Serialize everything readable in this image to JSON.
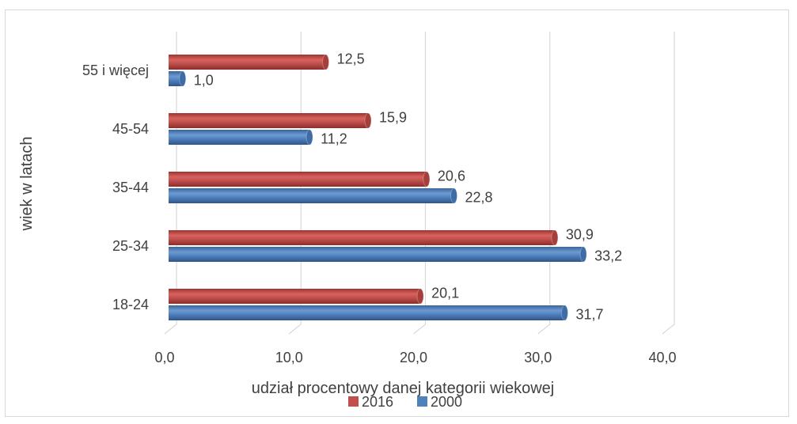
{
  "chart_data": {
    "type": "bar",
    "orientation": "horizontal",
    "style": "3d-cylinder",
    "categories": [
      "18-24",
      "25-34",
      "35-44",
      "45-54",
      "55 i więcej"
    ],
    "series": [
      {
        "name": "2016",
        "values": [
          20.1,
          30.9,
          20.6,
          15.9,
          12.5
        ]
      },
      {
        "name": "2000",
        "values": [
          31.7,
          33.2,
          22.8,
          11.2,
          1.0
        ]
      }
    ],
    "data_labels": {
      "2016": [
        "20,1",
        "30,9",
        "20,6",
        "15,9",
        "12,5"
      ],
      "2000": [
        "31,7",
        "33,2",
        "22,8",
        "11,2",
        "1,0"
      ]
    },
    "xlabel": "udział procentowy danej kategorii wiekowej",
    "ylabel": "wiek w latach",
    "xlim": [
      0,
      40
    ],
    "x_ticks": [
      0,
      10,
      20,
      30,
      40
    ],
    "x_tick_labels": [
      "0,0",
      "10,0",
      "20,0",
      "30,0",
      "40,0"
    ],
    "grid": "vertical",
    "legend": "bottom",
    "colors": {
      "2016": "#c0504d",
      "2000": "#4f81bd",
      "grid": "#d9d9d9",
      "text": "#404040"
    }
  }
}
